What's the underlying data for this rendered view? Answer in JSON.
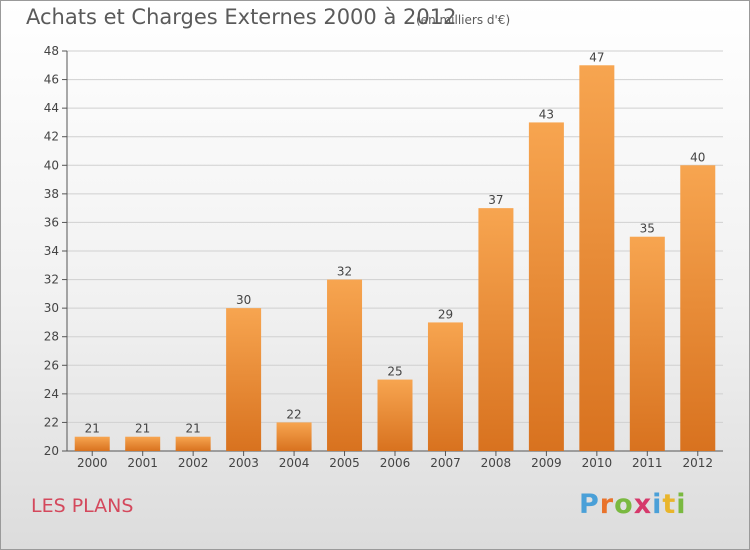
{
  "header": {
    "title": "Achats et Charges Externes 2000 à 2012",
    "unit": "(en milliers d'€)"
  },
  "footer": {
    "commune": "LES PLANS",
    "logo_letters": [
      "P",
      "r",
      "o",
      "x",
      "i",
      "t",
      "i"
    ],
    "logo_colors": [
      "#4aa0d8",
      "#e9732b",
      "#7ab940",
      "#d6396b",
      "#4aa0d8",
      "#e9b52b",
      "#7ab940"
    ]
  },
  "colors": {
    "bar_top": "#f7a550",
    "bar_bottom": "#d8721f",
    "grid": "#d0d0d0",
    "axis": "#555555",
    "text": "#444444"
  },
  "chart_data": {
    "type": "bar",
    "title": "Achats et Charges Externes 2000 à 2012",
    "categories": [
      "2000",
      "2001",
      "2002",
      "2003",
      "2004",
      "2005",
      "2006",
      "2007",
      "2008",
      "2009",
      "2010",
      "2011",
      "2012"
    ],
    "values": [
      21,
      21,
      21,
      30,
      22,
      32,
      25,
      29,
      37,
      43,
      47,
      35,
      40
    ],
    "ylim": [
      20,
      48
    ],
    "yticks": [
      20,
      22,
      24,
      26,
      28,
      30,
      32,
      34,
      36,
      38,
      40,
      42,
      44,
      46,
      48
    ],
    "grid": true,
    "xlabel": "",
    "ylabel": ""
  }
}
